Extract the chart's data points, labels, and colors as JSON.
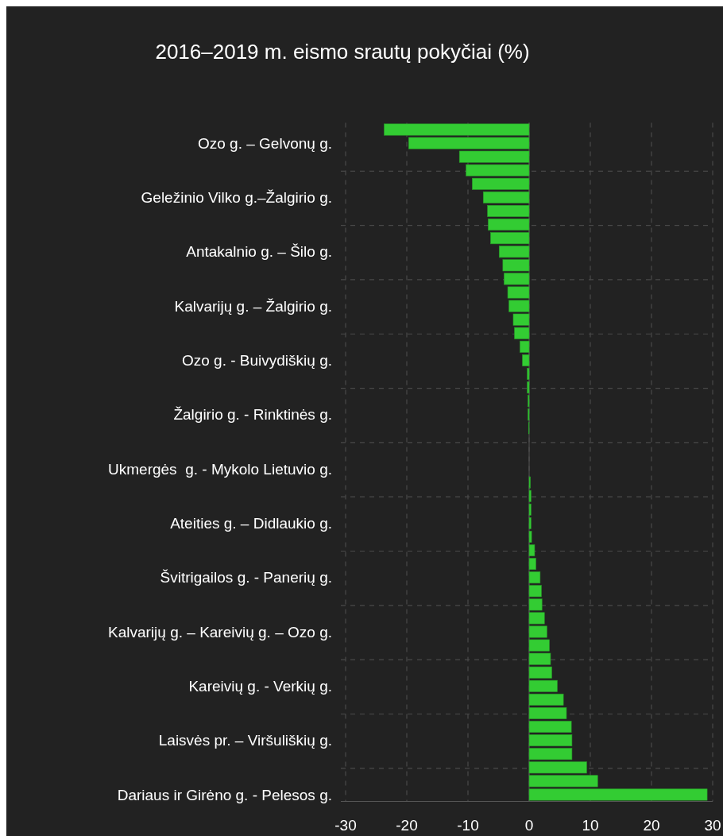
{
  "chart_data": {
    "type": "bar",
    "orientation": "horizontal",
    "title": "2016–2019 m. eismo srautų pokyčiai (%)",
    "categories": [
      null,
      "Ozo g. – Gelvonų g.",
      null,
      null,
      null,
      "Geležinio Vilko g.–Žalgirio g.",
      null,
      null,
      null,
      "Antakalnio g. – Šilo g.",
      null,
      null,
      null,
      "Kalvarijų g. – Žalgirio g.",
      null,
      null,
      null,
      "Ozo g. - Buivydiškių g.",
      null,
      null,
      null,
      "Žalgirio g. - Rinktinės g.",
      null,
      null,
      null,
      "Ukmergės  g. - Mykolo Lietuvio g.",
      null,
      null,
      null,
      "Ateities g. – Didlaukio g.",
      null,
      null,
      null,
      "Švitrigailos g. - Panerių g.",
      null,
      null,
      null,
      "Kalvarijų g. – Kareivių g. – Ozo g.",
      null,
      null,
      null,
      "Kareivių g. - Verkių g.",
      null,
      null,
      null,
      "Laisvės pr. – Viršuliškių g.",
      null,
      null,
      null,
      "Dariaus ir Girėno g. - Pelesos g."
    ],
    "values": [
      -23.7,
      -19.7,
      -11.4,
      -10.3,
      -9.3,
      -7.5,
      -6.8,
      -6.7,
      -6.3,
      -4.9,
      -4.3,
      -4.1,
      -3.5,
      -3.3,
      -2.6,
      -2.4,
      -1.5,
      -1.1,
      -0.3,
      -0.3,
      -0.2,
      -0.2,
      -0.1,
      0,
      0,
      0,
      0.2,
      0.3,
      0.3,
      0.3,
      0.4,
      0.9,
      1.1,
      1.8,
      2,
      2.1,
      2.5,
      2.9,
      3.3,
      3.5,
      3.7,
      4.6,
      5.6,
      6.1,
      6.9,
      7,
      7,
      9.4,
      11.2,
      29.1
    ],
    "color": "#33cc33",
    "xlim": [
      -30,
      30
    ],
    "xticks": [
      -30,
      -20,
      -10,
      0,
      10,
      20,
      30
    ],
    "grid": true
  }
}
